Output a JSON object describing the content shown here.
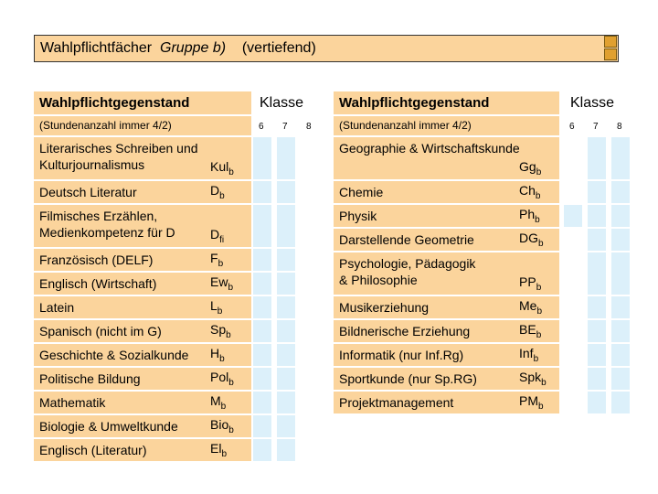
{
  "title": {
    "main": "Wahlpflichtfächer",
    "group": "Gruppe b)",
    "note": "(vertiefend)"
  },
  "tables": [
    {
      "header": "Wahlpflichtgegenstand",
      "klasse": "Klasse",
      "subheader": "(Stundenanzahl immer 4/2)",
      "grades": [
        "6",
        "7",
        "8"
      ],
      "rows": [
        {
          "name": [
            "Literarisches Schreiben und",
            "Kulturjournalismus"
          ],
          "code": "Kul",
          "sub": "b"
        },
        {
          "name": [
            "Deutsch Literatur"
          ],
          "code": "D",
          "sub": "b"
        },
        {
          "name": [
            "Filmisches Erzählen,",
            "Medienkompetenz für D"
          ],
          "code": "D",
          "sub": "fi"
        },
        {
          "name": [
            "Französisch (DELF)"
          ],
          "code": "F",
          "sub": "b"
        },
        {
          "name": [
            "Englisch (Wirtschaft)"
          ],
          "code": "Ew",
          "sub": "b"
        },
        {
          "name": [
            "Latein"
          ],
          "code": "L",
          "sub": "b"
        },
        {
          "name": [
            "Spanisch (nicht im G)"
          ],
          "code": "Sp",
          "sub": "b"
        },
        {
          "name": [
            "Geschichte & Sozialkunde"
          ],
          "code": "H",
          "sub": "b"
        },
        {
          "name": [
            "Politische Bildung"
          ],
          "code": "Pol",
          "sub": "b"
        },
        {
          "name": [
            "Mathematik"
          ],
          "code": "M",
          "sub": "b"
        },
        {
          "name": [
            "Biologie & Umweltkunde"
          ],
          "code": "Bio",
          "sub": "b"
        },
        {
          "name": [
            "Englisch (Literatur)"
          ],
          "code": "El",
          "sub": "b"
        }
      ]
    },
    {
      "header": "Wahlpflichtgegenstand",
      "klasse": "Klasse",
      "subheader": "(Stundenanzahl immer 4/2)",
      "grades": [
        "6",
        "7",
        "8"
      ],
      "rows": [
        {
          "name": [
            "Geographie & Wirtschaftskunde",
            ""
          ],
          "code": "Gg",
          "sub": "b"
        },
        {
          "name": [
            "Chemie"
          ],
          "code": "Ch",
          "sub": "b"
        },
        {
          "name": [
            "Physik"
          ],
          "code": "Ph",
          "sub": "b"
        },
        {
          "name": [
            "Darstellende Geometrie"
          ],
          "code": "DG",
          "sub": "b"
        },
        {
          "name": [
            "Psychologie, Pädagogik",
            "& Philosophie"
          ],
          "code": "PP",
          "sub": "b"
        },
        {
          "name": [
            "Musikerziehung"
          ],
          "code": "Me",
          "sub": "b"
        },
        {
          "name": [
            "Bildnerische Erziehung"
          ],
          "code": "BE",
          "sub": "b"
        },
        {
          "name": [
            "Informatik (nur Inf.Rg)"
          ],
          "code": "Inf",
          "sub": "b"
        },
        {
          "name": [
            "Sportkunde (nur Sp.RG)"
          ],
          "code": "Spk",
          "sub": "b"
        },
        {
          "name": [
            "Projektmanagement"
          ],
          "code": "PM",
          "sub": "b"
        }
      ]
    }
  ]
}
